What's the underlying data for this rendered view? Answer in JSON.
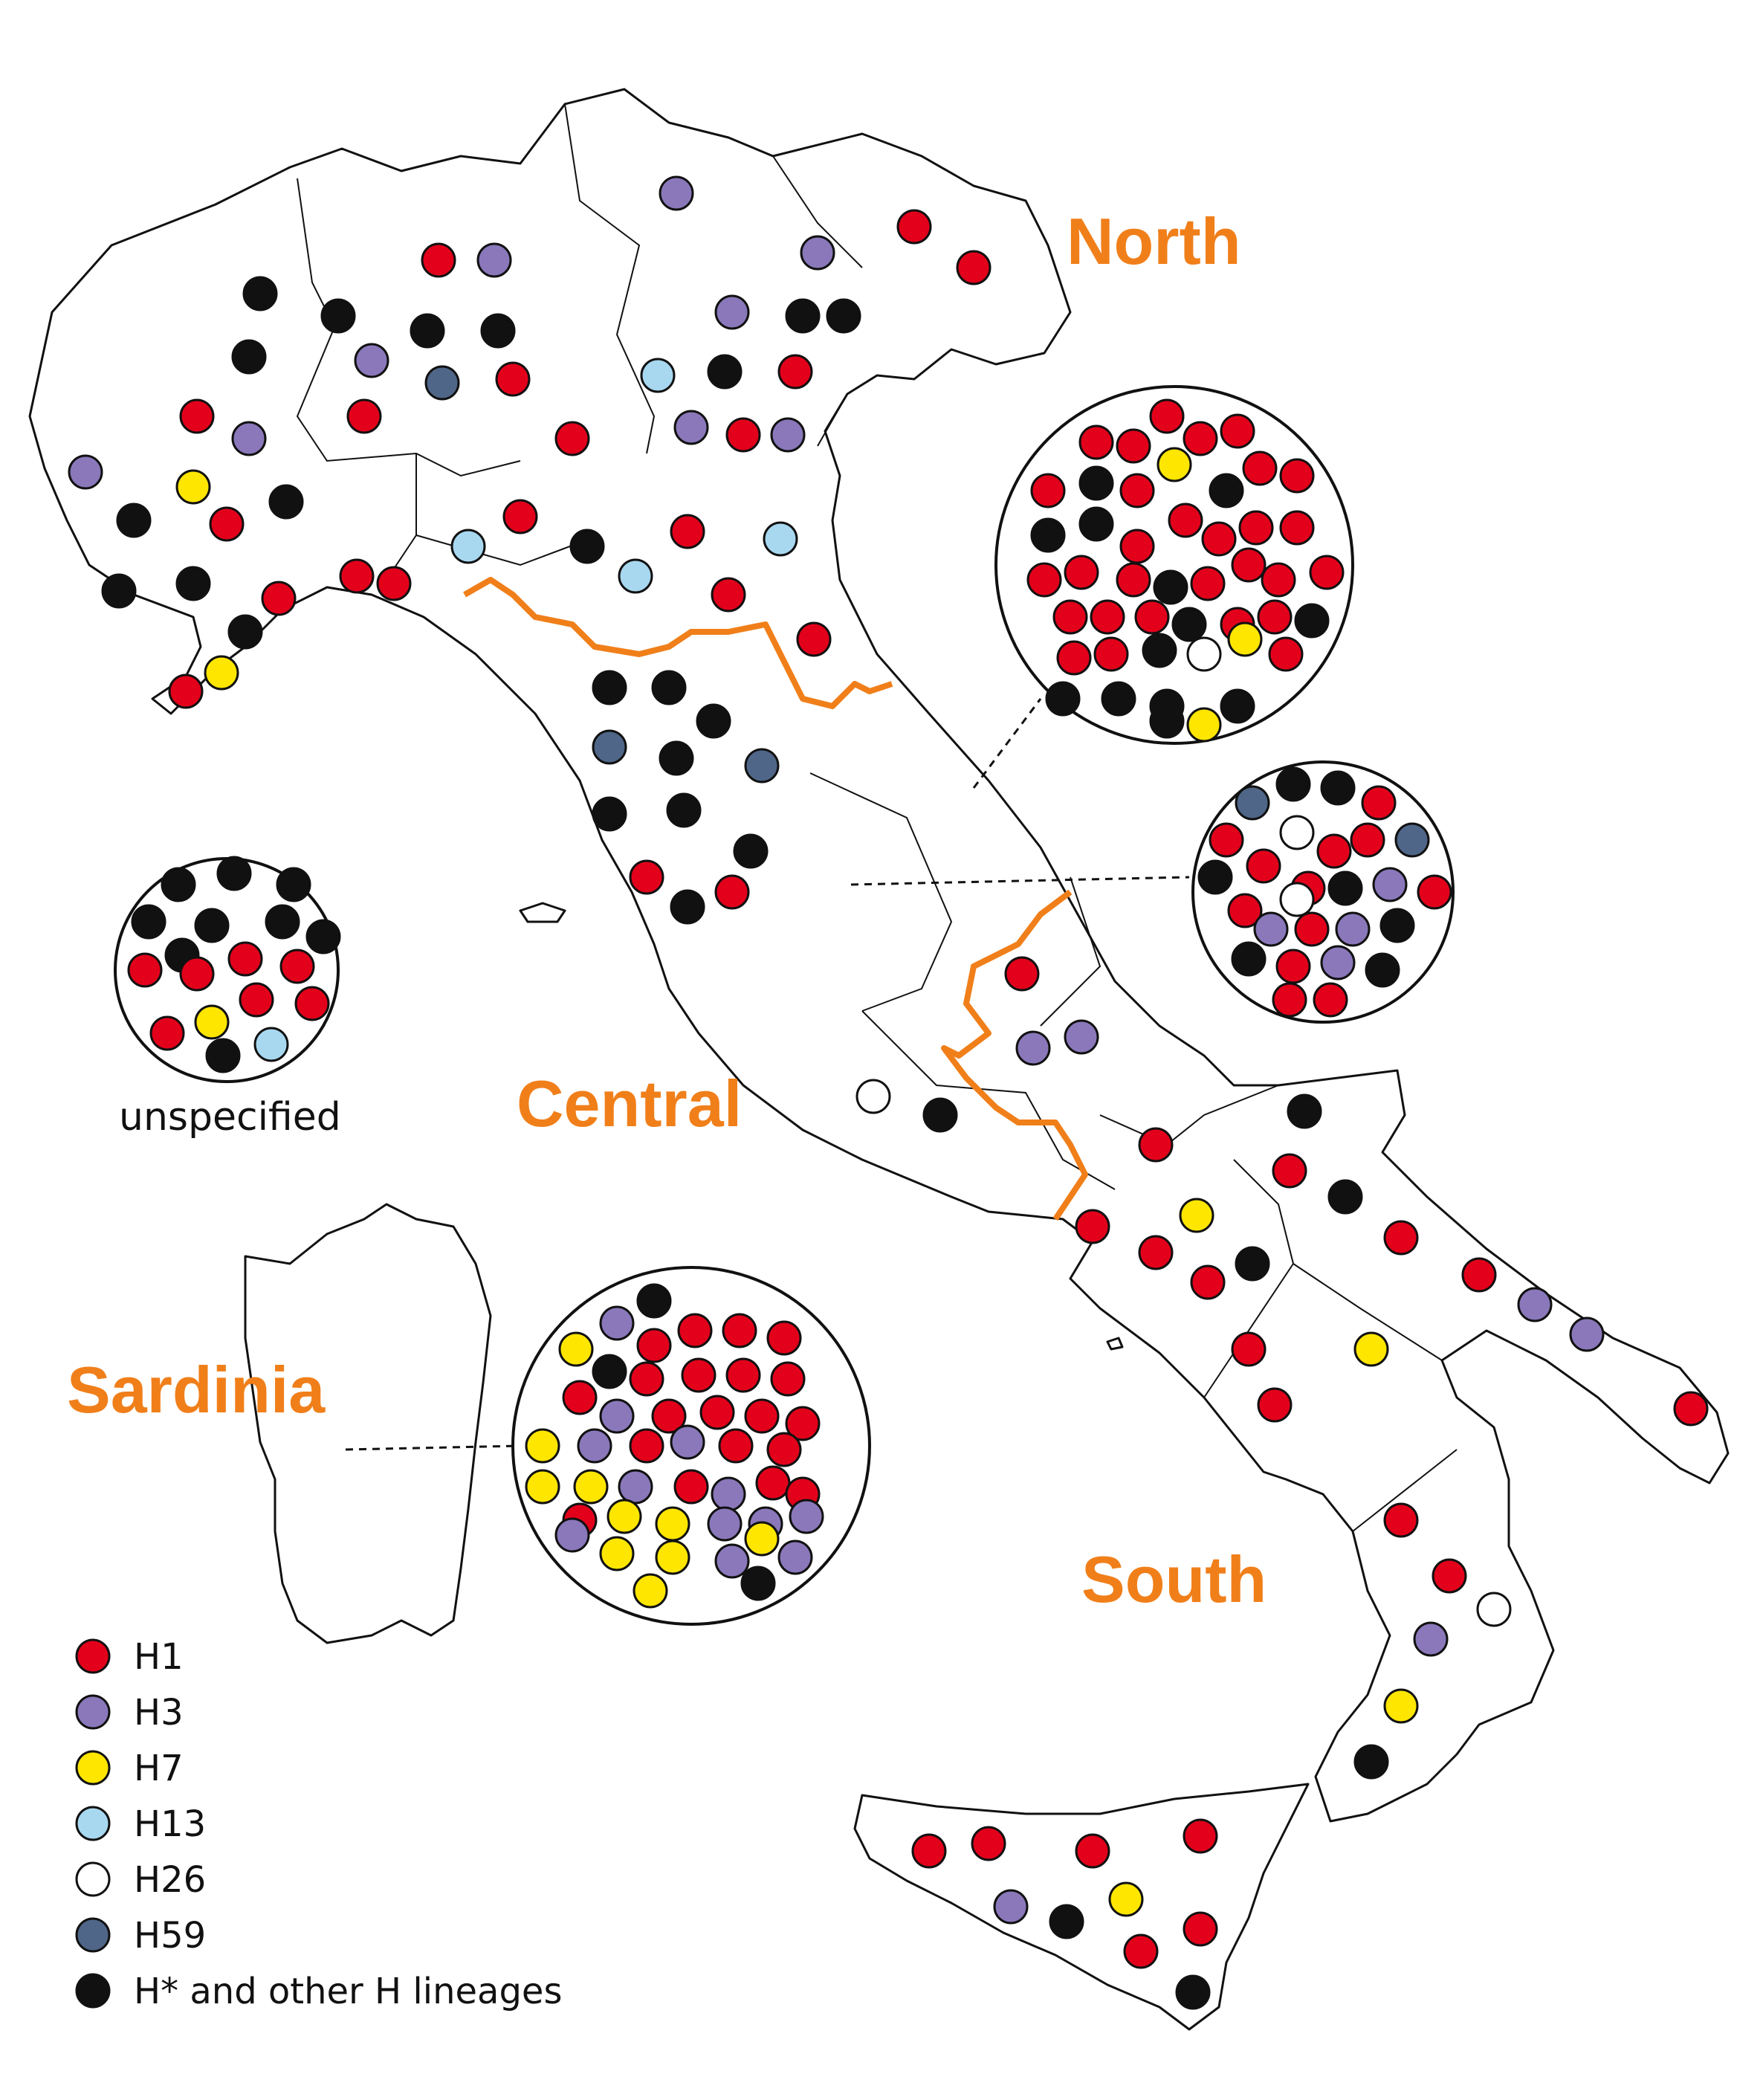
{
  "regions": {
    "north": "North",
    "central": "Central",
    "south": "South",
    "sardinia": "Sardinia"
  },
  "unspecified_label": "unspecified",
  "colors": {
    "H1": "#e3001b",
    "H3": "#8a78bb",
    "H7": "#ffe600",
    "H13": "#a8d8f0",
    "H26": "#ffffff",
    "H59": "#4f6688",
    "H_other": "#111111",
    "region_label": "#f07f1a"
  },
  "legend": [
    {
      "key": "H1",
      "label": "H1"
    },
    {
      "key": "H3",
      "label": "H3"
    },
    {
      "key": "H7",
      "label": "H7"
    },
    {
      "key": "H13",
      "label": "H13"
    },
    {
      "key": "H26",
      "label": "H26"
    },
    {
      "key": "H59",
      "label": "H59"
    },
    {
      "key": "H_other",
      "label": "H* and other H lineages"
    }
  ]
}
